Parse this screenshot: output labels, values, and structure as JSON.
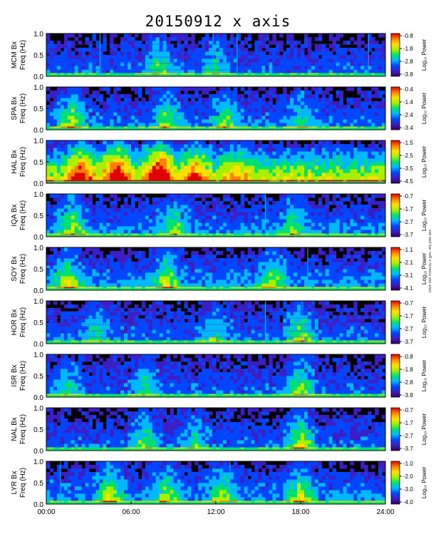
{
  "title": "20150912 x axis",
  "side_note": "ssb oed bar noR s rbrseco oso stoci",
  "chart_data": {
    "type": "heatmap",
    "title": "20150912 x axis",
    "x_ticks": [
      "00:00",
      "06:00",
      "12:00",
      "18:00",
      "24:00"
    ],
    "x_range_hours": [
      0,
      24
    ],
    "y_range_hz": [
      0.0,
      1.0
    ],
    "y_ticks": [
      "0.0",
      "0.5",
      "1.0"
    ],
    "y_axis_sub": "Freq (Hz)",
    "colorbar_label": "Log₁₀ Power",
    "colormap": [
      "#3a0060",
      "#3b1ec4",
      "#0046ff",
      "#00b8ff",
      "#00e070",
      "#a8f000",
      "#ffe100",
      "#ff8000",
      "#e00000"
    ],
    "panels": [
      {
        "station": "MCM Bx",
        "cbar_ticks": [
          "-0.8",
          "-1.8",
          "-2.8",
          "-3.8"
        ],
        "intensity": 0.22,
        "lines_h": true,
        "spikes": [
          3.8,
          11.8,
          13.5,
          22.8
        ],
        "bursts": [
          [
            8.0,
            0.5
          ],
          [
            12.0,
            0.4
          ]
        ]
      },
      {
        "station": "SPA Bx",
        "cbar_ticks": [
          "-0.4",
          "-1.4",
          "-2.4",
          "-3.4"
        ],
        "intensity": 0.25,
        "lines_h": false,
        "spikes": [],
        "bursts": [
          [
            1.8,
            0.6
          ],
          [
            8.5,
            0.5
          ],
          [
            12.7,
            0.5
          ],
          [
            18.0,
            0.4
          ]
        ]
      },
      {
        "station": "HAL Bx",
        "cbar_ticks": [
          "-1.5",
          "-2.5",
          "-3.5",
          "-4.5"
        ],
        "intensity": 0.7,
        "lines_h": false,
        "spikes": [],
        "bursts": [
          [
            2.5,
            0.7
          ],
          [
            5.0,
            0.9
          ],
          [
            8.0,
            1.0
          ],
          [
            10.5,
            0.6
          ],
          [
            13.5,
            0.4
          ]
        ]
      },
      {
        "station": "IQA Bx",
        "cbar_ticks": [
          "-0.7",
          "-1.7",
          "-2.7",
          "-3.7"
        ],
        "intensity": 0.28,
        "lines_h": false,
        "spikes": [
          15.5
        ],
        "bursts": [
          [
            1.8,
            0.6
          ],
          [
            9.0,
            0.5
          ],
          [
            17.5,
            0.45
          ]
        ]
      },
      {
        "station": "SOY Bx",
        "cbar_ticks": [
          "-1.1",
          "-2.1",
          "-3.1",
          "-4.1"
        ],
        "intensity": 0.3,
        "lines_h": false,
        "spikes": [
          18.5
        ],
        "bursts": [
          [
            1.5,
            0.6
          ],
          [
            8.5,
            0.6
          ],
          [
            16.0,
            0.5
          ]
        ]
      },
      {
        "station": "HOR Bx",
        "cbar_ticks": [
          "-0.7",
          "-1.7",
          "-2.7",
          "-3.7"
        ],
        "intensity": 0.24,
        "lines_h": true,
        "spikes": [
          15.5,
          18.1
        ],
        "bursts": [
          [
            3.5,
            0.4
          ],
          [
            12.0,
            0.4
          ],
          [
            18.0,
            0.6
          ]
        ]
      },
      {
        "station": "ISR Bx",
        "cbar_ticks": [
          "-0.8",
          "-1.8",
          "-2.8",
          "-3.8"
        ],
        "intensity": 0.22,
        "lines_h": false,
        "spikes": [],
        "bursts": [
          [
            1.5,
            0.4
          ],
          [
            7.0,
            0.4
          ],
          [
            18.0,
            0.6
          ]
        ]
      },
      {
        "station": "NAL Bx",
        "cbar_ticks": [
          "-0.7",
          "-1.7",
          "-2.7",
          "-3.7"
        ],
        "intensity": 0.22,
        "lines_h": false,
        "spikes": [],
        "bursts": [
          [
            7.0,
            0.5
          ],
          [
            10.5,
            0.4
          ],
          [
            18.0,
            0.7
          ]
        ]
      },
      {
        "station": "LYR Bx",
        "cbar_ticks": [
          "-1.0",
          "-2.0",
          "-3.0",
          "-4.0"
        ],
        "intensity": 0.3,
        "lines_h": false,
        "spikes": [
          1.0,
          13.0
        ],
        "bursts": [
          [
            4.5,
            0.6
          ],
          [
            8.5,
            0.5
          ],
          [
            12.5,
            0.5
          ],
          [
            18.0,
            0.6
          ]
        ]
      }
    ]
  }
}
